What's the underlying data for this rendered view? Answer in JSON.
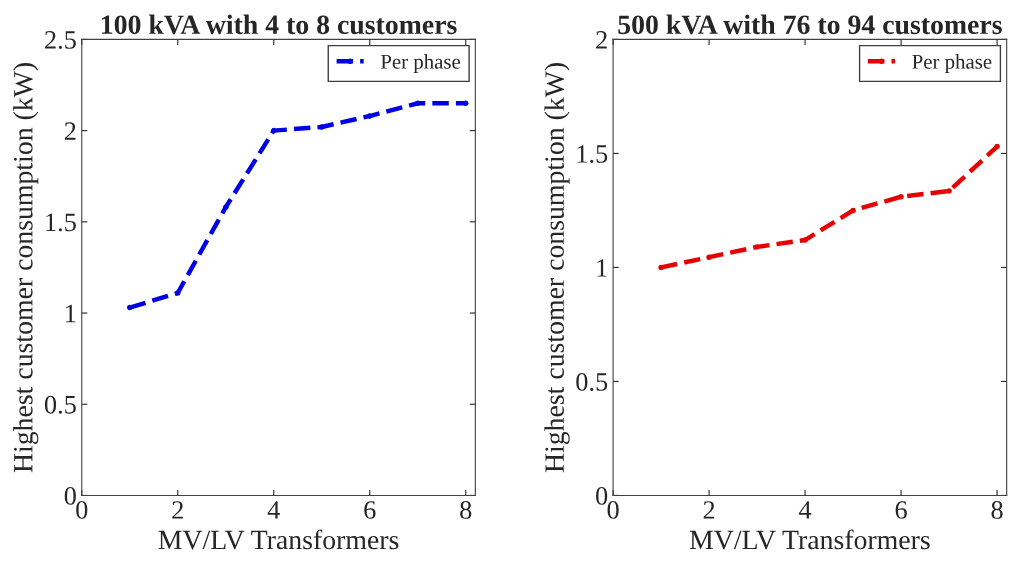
{
  "chart_data": [
    {
      "type": "line",
      "title": "100 kVA with 4 to 8 customers",
      "xlabel": "MV/LV Transformers",
      "ylabel": "Highest customer consumption (kW)",
      "x": [
        1,
        2,
        3,
        4,
        5,
        6,
        7,
        8
      ],
      "series": [
        {
          "name": "Per phase",
          "color": "#0000e6",
          "values": [
            1.03,
            1.11,
            1.58,
            2.0,
            2.02,
            2.08,
            2.15,
            2.15
          ]
        }
      ],
      "xlim": [
        0,
        8.2
      ],
      "xticks": [
        0,
        2,
        4,
        6,
        8
      ],
      "ylim": [
        0,
        2.5
      ],
      "yticks": [
        0,
        0.5,
        1,
        1.5,
        2,
        2.5
      ],
      "grid": false,
      "legend": "top right",
      "marker": "circle",
      "line_style": "dashed"
    },
    {
      "type": "line",
      "title": "500 kVA with 76 to 94 customers",
      "xlabel": "MV/LV Transformers",
      "ylabel": "Highest customer consumption (kW)",
      "x": [
        1,
        2,
        3,
        4,
        5,
        6,
        7,
        8
      ],
      "series": [
        {
          "name": "Per phase",
          "color": "#e60000",
          "values": [
            1.0,
            1.045,
            1.09,
            1.12,
            1.25,
            1.31,
            1.335,
            1.53
          ]
        }
      ],
      "xlim": [
        0,
        8.2
      ],
      "xticks": [
        0,
        2,
        4,
        6,
        8
      ],
      "ylim": [
        0,
        2
      ],
      "yticks": [
        0,
        0.5,
        1,
        1.5,
        2
      ],
      "grid": false,
      "legend": "top right",
      "marker": "circle",
      "line_style": "dashed"
    }
  ]
}
